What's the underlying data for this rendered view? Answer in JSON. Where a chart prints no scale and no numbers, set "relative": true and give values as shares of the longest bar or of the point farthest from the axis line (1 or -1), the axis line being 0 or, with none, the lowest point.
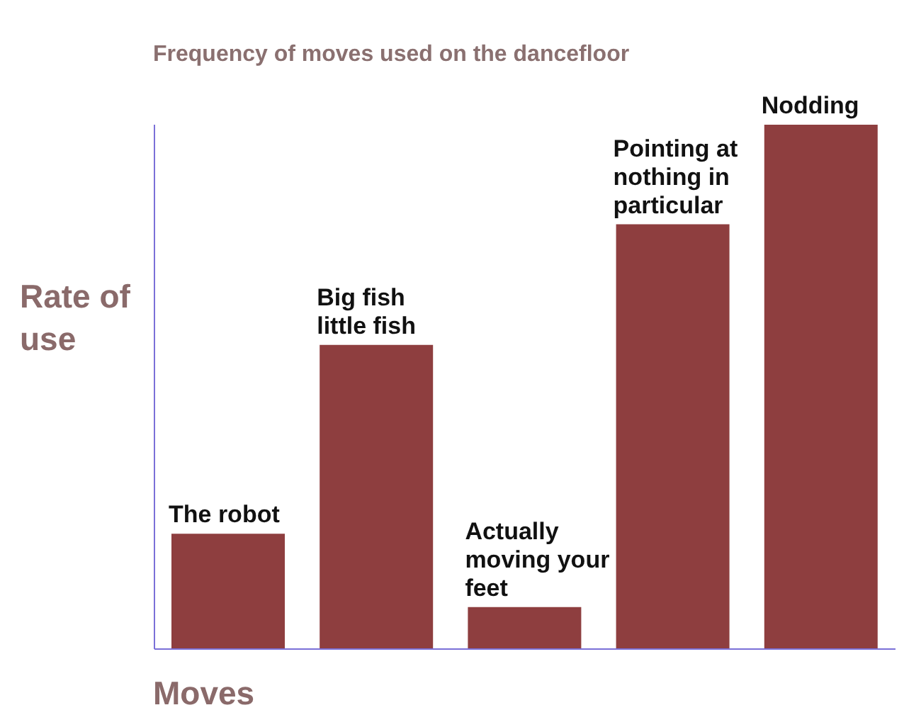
{
  "chart_data": {
    "type": "bar",
    "title": "Frequency of moves used on the dancefloor",
    "xlabel": "Moves",
    "ylabel": "Rate of use",
    "categories": [
      "The robot",
      "Big fish little fish",
      "Actually moving your feet",
      "Pointing at nothing in particular",
      "Nodding"
    ],
    "values": [
      0.22,
      0.58,
      0.08,
      0.81,
      1
    ],
    "color": "#8e3e3f",
    "relative": true,
    "grid": false,
    "legend": false
  }
}
